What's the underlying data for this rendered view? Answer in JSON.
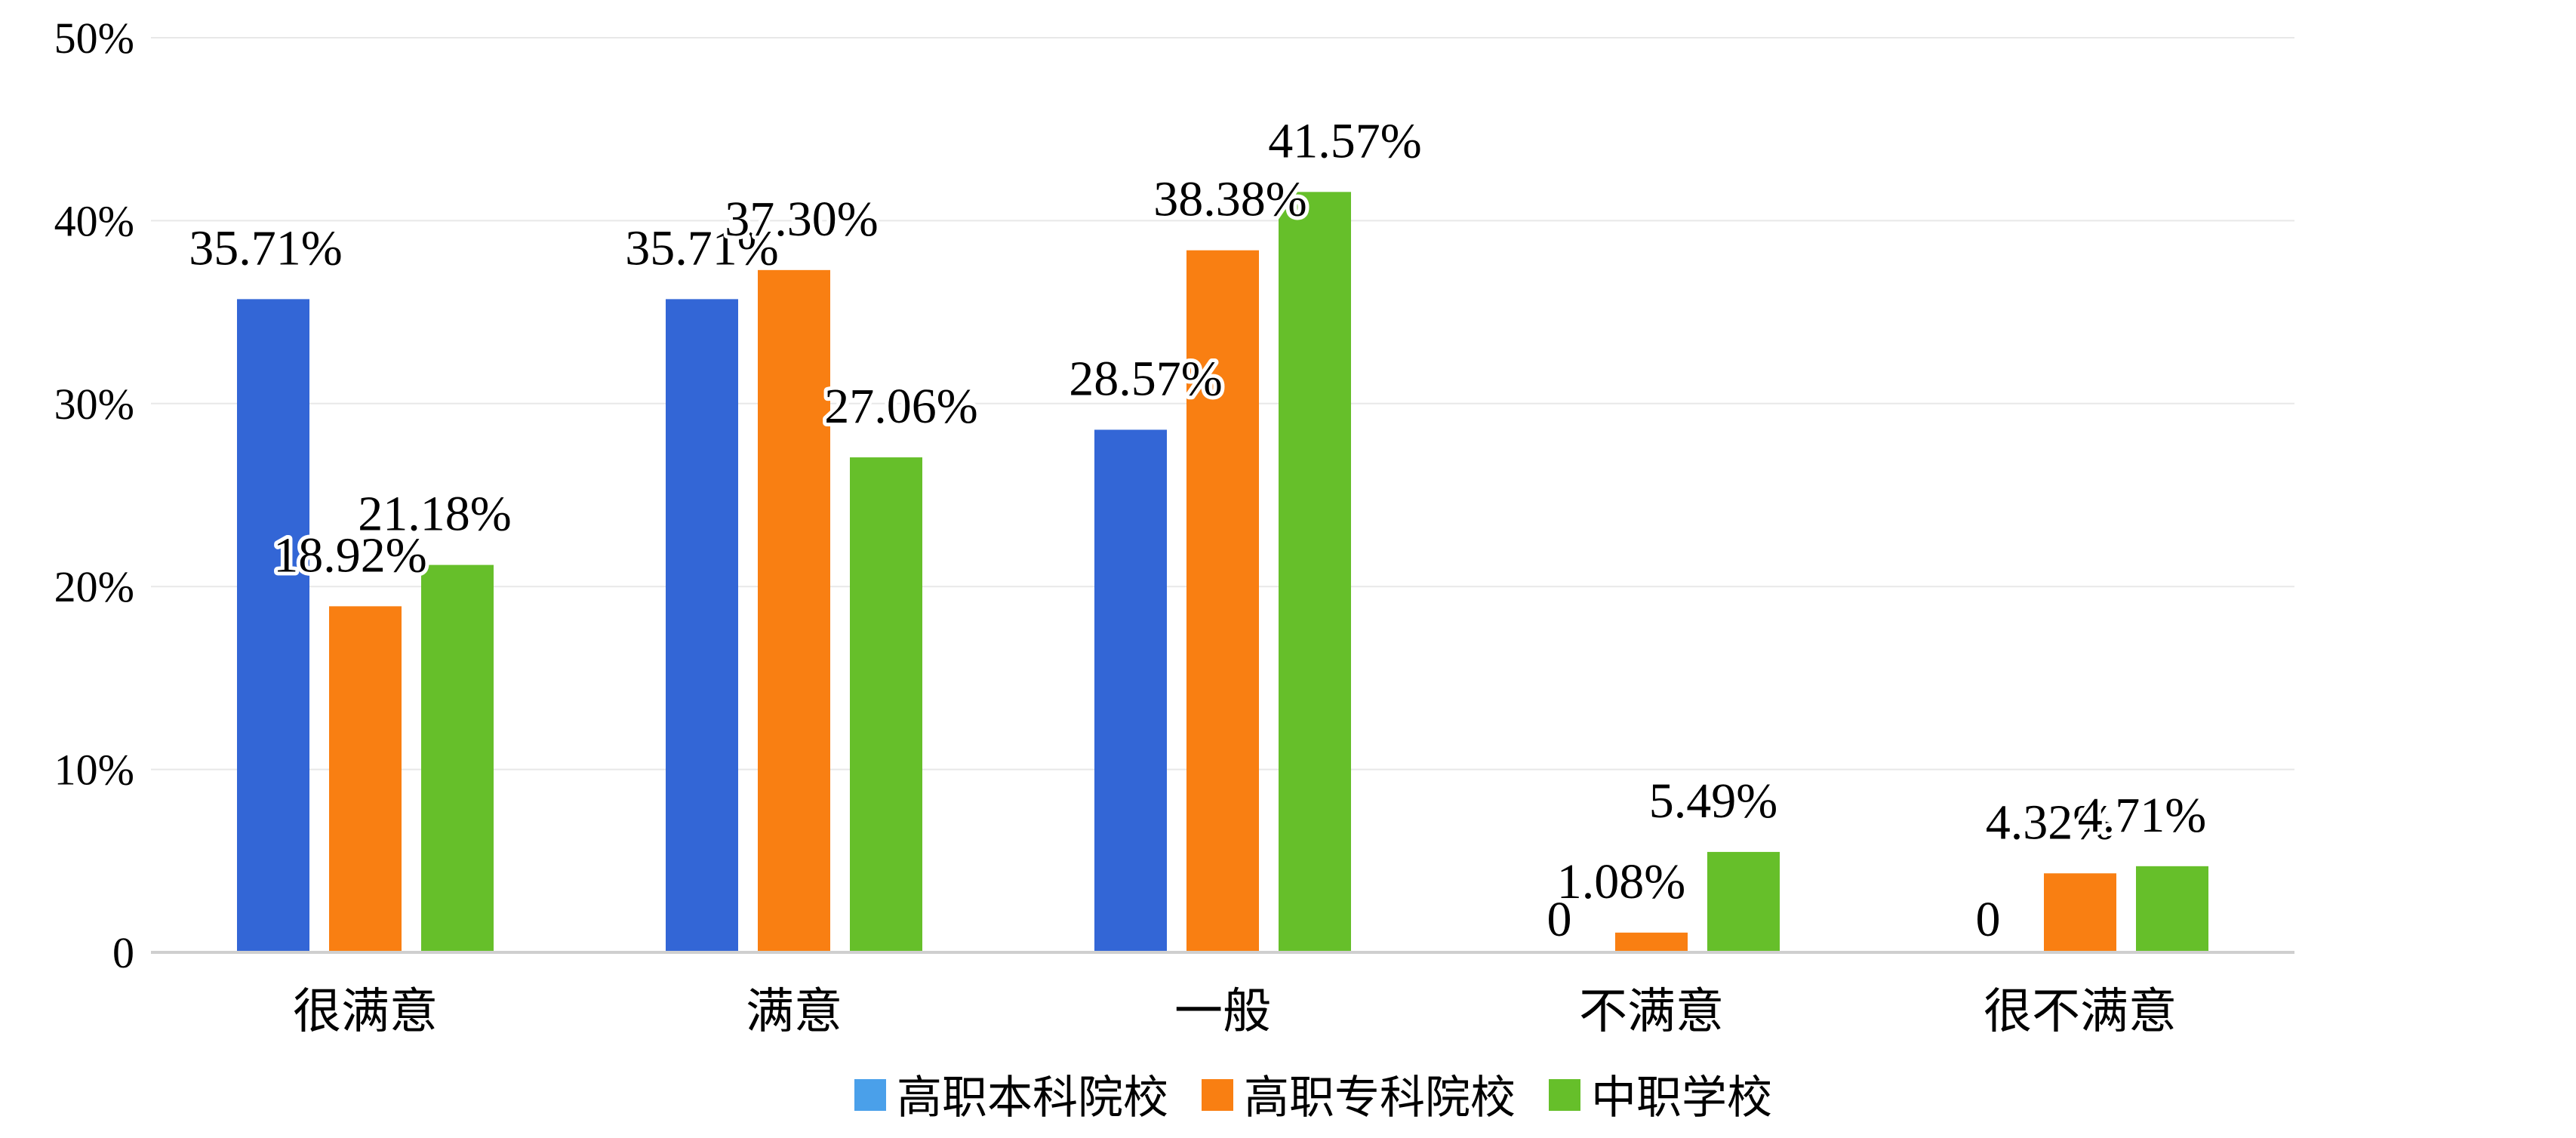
{
  "chart_data": {
    "type": "bar",
    "categories": [
      "很满意",
      "满意",
      "一般",
      "不满意",
      "很不满意"
    ],
    "series": [
      {
        "name": "高职本科院校",
        "color": "#3366d6",
        "values": [
          35.71,
          35.71,
          28.57,
          0,
          0
        ],
        "labels": [
          "35.71%",
          "35.71%",
          "28.57%",
          "0",
          "0"
        ]
      },
      {
        "name": "高职专科院校",
        "color": "#f97f12",
        "values": [
          18.92,
          37.3,
          38.38,
          1.08,
          4.32
        ],
        "labels": [
          "18.92%",
          "37.30%",
          "38.38%",
          "1.08%",
          "4.32%"
        ]
      },
      {
        "name": "中职学校",
        "color": "#66bf2a",
        "values": [
          21.18,
          27.06,
          41.57,
          5.49,
          4.71
        ],
        "labels": [
          "21.18%",
          "27.06%",
          "41.57%",
          "5.49%",
          "4.71%"
        ]
      }
    ],
    "y_ticks": [
      "0",
      "10%",
      "20%",
      "30%",
      "40%",
      "50%"
    ],
    "ylim": [
      0,
      50
    ],
    "grid": true,
    "legend_position": "bottom-center",
    "legend_swatch_colors": [
      "#4aa0ea",
      "#f97f12",
      "#66bf2a"
    ]
  }
}
